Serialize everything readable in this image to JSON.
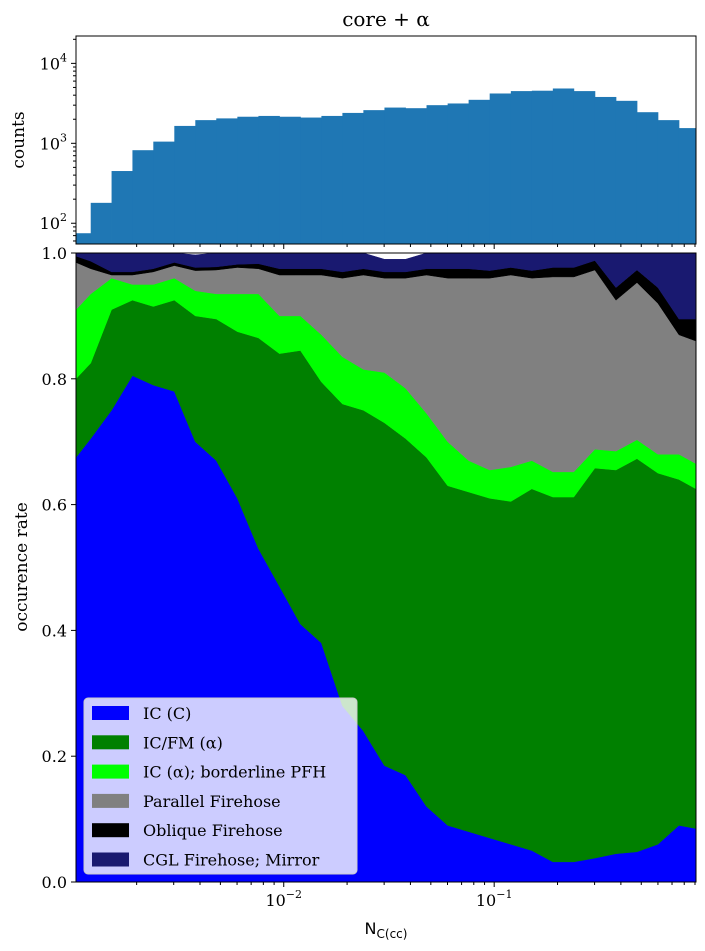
{
  "chart_data": [
    {
      "type": "bar",
      "title": "core + α",
      "ylabel": "counts",
      "xlabel": "",
      "xscale": "log",
      "yscale": "log",
      "xlim": [
        0.00103,
        0.91
      ],
      "ylim": [
        55,
        22000
      ],
      "bar_color": "#1f77b4",
      "bin_edges": [
        0.00103,
        0.00121,
        0.00152,
        0.00191,
        0.0024,
        0.00302,
        0.0038,
        0.00478,
        0.00602,
        0.00758,
        0.00954,
        0.012,
        0.0151,
        0.019,
        0.0239,
        0.0301,
        0.0379,
        0.0477,
        0.0601,
        0.0756,
        0.0952,
        0.12,
        0.151,
        0.19,
        0.239,
        0.301,
        0.379,
        0.477,
        0.6,
        0.755,
        0.91
      ],
      "values": [
        75,
        180,
        450,
        820,
        1050,
        1650,
        1950,
        2050,
        2150,
        2200,
        2150,
        2100,
        2200,
        2400,
        2600,
        2800,
        2750,
        3000,
        3150,
        3500,
        4200,
        4500,
        4550,
        4850,
        4500,
        3800,
        3400,
        2450,
        1950,
        1550
      ],
      "yticks": [
        {
          "value": 100,
          "base": "10",
          "exp": "2"
        },
        {
          "value": 1000,
          "base": "10",
          "exp": "3"
        },
        {
          "value": 10000,
          "base": "10",
          "exp": "4"
        }
      ]
    },
    {
      "type": "area",
      "stacked": true,
      "xscale": "log",
      "xlim": [
        0.00103,
        0.91
      ],
      "ylim": [
        0.0,
        1.0
      ],
      "xlabel": "N",
      "xlabel_subscript": "C(cc)",
      "ylabel": "occurence rate",
      "xticks": [
        {
          "value": 0.01,
          "base": "10",
          "exp": "−2"
        },
        {
          "value": 0.1,
          "base": "10",
          "exp": "−1"
        }
      ],
      "yticks": [
        "0.0",
        "0.2",
        "0.4",
        "0.6",
        "0.8",
        "1.0"
      ],
      "x": [
        0.00103,
        0.00121,
        0.00152,
        0.00191,
        0.0024,
        0.00302,
        0.0038,
        0.00478,
        0.00602,
        0.00758,
        0.00954,
        0.012,
        0.0151,
        0.019,
        0.0239,
        0.0301,
        0.0379,
        0.0477,
        0.0601,
        0.0756,
        0.0952,
        0.12,
        0.151,
        0.19,
        0.239,
        0.301,
        0.379,
        0.477,
        0.6,
        0.755,
        0.91
      ],
      "series": [
        {
          "name": "IC (C)",
          "color": "#0000ff",
          "values": [
            0.675,
            0.705,
            0.75,
            0.805,
            0.79,
            0.78,
            0.7,
            0.67,
            0.61,
            0.53,
            0.47,
            0.41,
            0.38,
            0.28,
            0.24,
            0.185,
            0.17,
            0.12,
            0.09,
            0.08,
            0.07,
            0.06,
            0.05,
            0.032,
            0.032,
            0.038,
            0.045,
            0.048,
            0.06,
            0.09,
            0.085
          ]
        },
        {
          "name": "IC/FM (α)",
          "color": "#008000",
          "values": [
            0.125,
            0.12,
            0.16,
            0.12,
            0.125,
            0.145,
            0.2,
            0.225,
            0.265,
            0.335,
            0.37,
            0.435,
            0.415,
            0.48,
            0.51,
            0.545,
            0.535,
            0.555,
            0.54,
            0.54,
            0.54,
            0.545,
            0.575,
            0.58,
            0.58,
            0.62,
            0.61,
            0.625,
            0.59,
            0.55,
            0.54
          ]
        },
        {
          "name": "IC (α); borderline PFH",
          "color": "#00ff00",
          "values": [
            0.11,
            0.11,
            0.05,
            0.025,
            0.035,
            0.035,
            0.04,
            0.04,
            0.06,
            0.07,
            0.06,
            0.055,
            0.075,
            0.075,
            0.065,
            0.08,
            0.08,
            0.07,
            0.07,
            0.05,
            0.045,
            0.055,
            0.045,
            0.04,
            0.04,
            0.03,
            0.03,
            0.03,
            0.03,
            0.04,
            0.04
          ]
        },
        {
          "name": "Parallel Firehose",
          "color": "#808080",
          "values": [
            0.075,
            0.04,
            0.005,
            0.015,
            0.02,
            0.02,
            0.032,
            0.038,
            0.042,
            0.04,
            0.065,
            0.065,
            0.095,
            0.125,
            0.15,
            0.15,
            0.175,
            0.22,
            0.26,
            0.29,
            0.305,
            0.305,
            0.29,
            0.31,
            0.31,
            0.285,
            0.24,
            0.25,
            0.24,
            0.19,
            0.195
          ]
        },
        {
          "name": "Oblique Firehose",
          "color": "#000000",
          "values": [
            0.01,
            0.012,
            0.005,
            0.005,
            0.005,
            0.005,
            0.005,
            0.005,
            0.005,
            0.008,
            0.01,
            0.01,
            0.01,
            0.01,
            0.01,
            0.01,
            0.01,
            0.01,
            0.015,
            0.015,
            0.012,
            0.012,
            0.012,
            0.015,
            0.015,
            0.015,
            0.02,
            0.02,
            0.025,
            0.025,
            0.035
          ]
        },
        {
          "name": "CGL Firehose; Mirror",
          "color": "#191970",
          "values": [
            0.005,
            0.013,
            0.03,
            0.03,
            0.025,
            0.015,
            0.02,
            0.022,
            0.018,
            0.017,
            0.025,
            0.025,
            0.025,
            0.03,
            0.025,
            0.02,
            0.02,
            0.025,
            0.025,
            0.025,
            0.028,
            0.023,
            0.028,
            0.023,
            0.023,
            0.012,
            0.055,
            0.027,
            0.055,
            0.105,
            0.105
          ]
        }
      ],
      "legend": "lower-left"
    }
  ]
}
